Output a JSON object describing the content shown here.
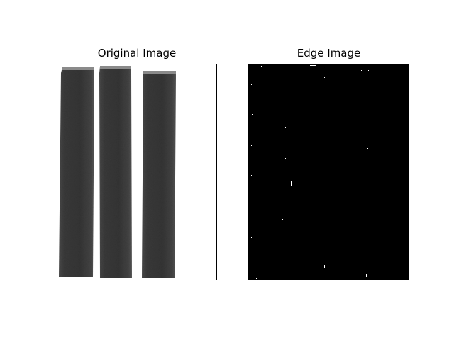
{
  "panels": {
    "left": {
      "title": "Original Image"
    },
    "right": {
      "title": "Edge Image"
    }
  },
  "colors": {
    "background": "#ffffff",
    "axes_frame": "#000000",
    "edge_background": "#000000",
    "edge_pixels": "#ffffff",
    "rod_fill": "#3a3a3a"
  }
}
